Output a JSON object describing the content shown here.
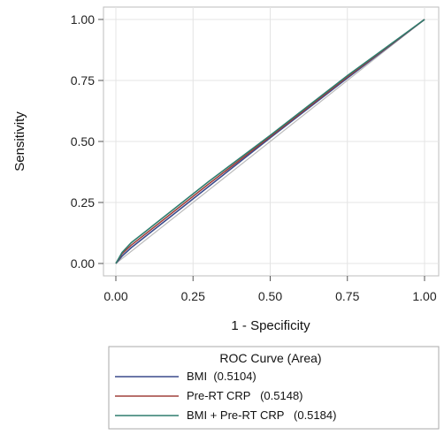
{
  "chart_data": {
    "type": "line",
    "xlabel": "1 - Specificity",
    "ylabel": "Sensitivity",
    "xlim": [
      0,
      1
    ],
    "ylim": [
      0,
      1
    ],
    "xticks": [
      "0.00",
      "0.25",
      "0.50",
      "0.75",
      "1.00"
    ],
    "yticks": [
      "0.00",
      "0.25",
      "0.50",
      "0.75",
      "1.00"
    ],
    "grid": true,
    "reference_line": {
      "x": [
        0,
        1
      ],
      "y": [
        0,
        1
      ],
      "color": "#bbbbbb"
    },
    "legend": {
      "title": "ROC Curve (Area)",
      "placement": "bottom",
      "entries": [
        "BMI  (0.5104)",
        "Pre-RT CRP   (0.5148)",
        "BMI + Pre-RT CRP   (0.5184)"
      ]
    },
    "series": [
      {
        "name": "BMI  (0.5104)",
        "color": "#3a4a8c",
        "x": [
          0,
          0.02,
          0.05,
          0.1,
          0.2,
          0.3,
          0.5,
          0.75,
          1.0
        ],
        "y": [
          0,
          0.03,
          0.065,
          0.115,
          0.215,
          0.315,
          0.515,
          0.76,
          1.0
        ]
      },
      {
        "name": "Pre-RT CRP   (0.5148)",
        "color": "#a0413c",
        "x": [
          0,
          0.02,
          0.05,
          0.1,
          0.2,
          0.3,
          0.5,
          0.75,
          1.0
        ],
        "y": [
          0,
          0.04,
          0.075,
          0.125,
          0.225,
          0.325,
          0.52,
          0.765,
          1.0
        ]
      },
      {
        "name": "BMI + Pre-RT CRP   (0.5184)",
        "color": "#2e7d6e",
        "x": [
          0,
          0.02,
          0.05,
          0.1,
          0.2,
          0.3,
          0.5,
          0.75,
          1.0
        ],
        "y": [
          0,
          0.045,
          0.085,
          0.135,
          0.235,
          0.335,
          0.525,
          0.77,
          1.0
        ]
      }
    ]
  }
}
